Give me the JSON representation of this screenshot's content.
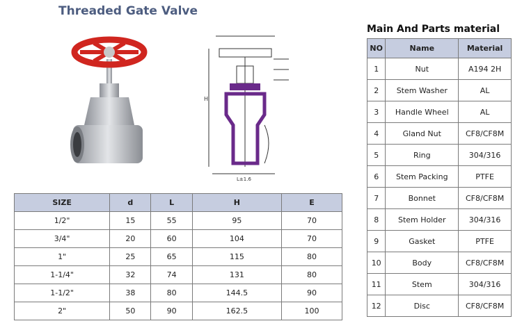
{
  "title": "Threaded Gate Valve",
  "drawing": {
    "labels": [
      "H",
      "L±1.6"
    ]
  },
  "dimensions_table": {
    "header": [
      "SIZE",
      "d",
      "L",
      "H",
      "E"
    ],
    "rows": [
      [
        "1/2\"",
        "15",
        "55",
        "95",
        "70"
      ],
      [
        "3/4\"",
        "20",
        "60",
        "104",
        "70"
      ],
      [
        "1\"",
        "25",
        "65",
        "115",
        "80"
      ],
      [
        "1-1/4\"",
        "32",
        "74",
        "131",
        "80"
      ],
      [
        "1-1/2\"",
        "38",
        "80",
        "144.5",
        "90"
      ],
      [
        "2\"",
        "50",
        "90",
        "162.5",
        "100"
      ]
    ]
  },
  "parts_table": {
    "title": "Main And Parts material",
    "header": [
      "NO",
      "Name",
      "Material"
    ],
    "rows": [
      [
        "1",
        "Nut",
        "A194 2H"
      ],
      [
        "2",
        "Stem Washer",
        "AL"
      ],
      [
        "3",
        "Handle Wheel",
        "AL"
      ],
      [
        "4",
        "Gland Nut",
        "CF8/CF8M"
      ],
      [
        "5",
        "Ring",
        "304/316"
      ],
      [
        "6",
        "Stem Packing",
        "PTFE"
      ],
      [
        "7",
        "Bonnet",
        "CF8/CF8M"
      ],
      [
        "8",
        "Stem Holder",
        "304/316"
      ],
      [
        "9",
        "Gasket",
        "PTFE"
      ],
      [
        "10",
        "Body",
        "CF8/CF8M"
      ],
      [
        "11",
        "Stem",
        "304/316"
      ],
      [
        "12",
        "Disc",
        "CF8/CF8M"
      ]
    ]
  }
}
